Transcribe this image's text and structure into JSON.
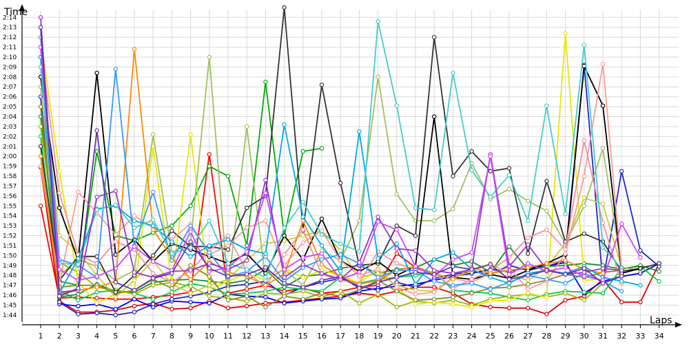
{
  "chart_data": {
    "type": "line",
    "ylabel": "Time",
    "xlabel": "Laps",
    "ylim": [
      "1:43.3",
      "2:15.2"
    ],
    "y_ticks": [
      "1:44",
      "1:45",
      "1:46",
      "1:47",
      "1:48",
      "1:49",
      "1:50",
      "1:51",
      "1:52",
      "1:53",
      "1:54",
      "1:55",
      "1:56",
      "1:57",
      "1:58",
      "1:59",
      "2:00",
      "2:01",
      "2:02",
      "2:03",
      "2:04",
      "2:05",
      "2:06",
      "2:07",
      "2:08",
      "2:09",
      "2:10",
      "2:11",
      "2:12",
      "2:13",
      "2:14"
    ],
    "x": [
      1,
      2,
      3,
      4,
      5,
      6,
      7,
      8,
      9,
      10,
      11,
      12,
      13,
      14,
      15,
      16,
      17,
      18,
      19,
      20,
      21,
      22,
      23,
      24,
      25,
      26,
      27,
      28,
      29,
      30,
      31,
      32,
      33,
      34
    ],
    "x_ticks": [
      "1",
      "2",
      "3",
      "4",
      "5",
      "6",
      "7",
      "8",
      "9",
      "10",
      "11",
      "12",
      "13",
      "14",
      "15",
      "16",
      "17",
      "18",
      "19",
      "20",
      "21",
      "22",
      "23",
      "24",
      "25",
      "26",
      "27",
      "28",
      "29",
      "30",
      "31",
      "32",
      "33",
      "34"
    ],
    "grid": true,
    "series": [
      {
        "color": "#ff0000",
        "values": [
          "1:55",
          "1:45.7",
          "1:45.8",
          "1:45.7",
          "1:45.6",
          "1:45.6",
          "1:45.8",
          "1:46",
          "1:46.3",
          "2:00.2",
          "1:46.2",
          "1:46.6",
          "1:47",
          "1:46.4",
          "1:46.7",
          "1:46.2",
          "1:46.4",
          "1:46.8",
          "1:47",
          "1:50.2",
          "1:48.8",
          "1:48",
          null,
          null,
          null,
          null,
          null,
          null,
          null,
          null,
          null,
          null,
          null,
          null
        ]
      },
      {
        "color": "#dd0000",
        "values": [
          "1:58.9",
          "1:45.4",
          "1:44.3",
          "1:44.3",
          "1:44.5",
          "1:44.9",
          "1:45.2",
          "1:44.6",
          "1:44.7",
          "1:45.4",
          "1:44.7",
          "1:44.9",
          "1:45.2",
          "1:45.3",
          "1:45.5",
          "1:45.7",
          "1:45.9",
          "1:46.2",
          "1:46",
          "1:46.4",
          "1:46.8",
          "1:46.8",
          "1:46.2",
          "1:45.1",
          "1:44.8",
          "1:44.7",
          "1:44.7",
          "1:44.1",
          "1:45.5",
          "1:45.9",
          "1:47.6",
          "1:45.3",
          "1:45.3",
          "1:49.2"
        ]
      },
      {
        "color": "#0000ee",
        "values": [
          "2:10",
          "1:45.1",
          "1:44.9",
          "1:45.1",
          "1:44.6",
          "1:45.6",
          "1:44.8",
          "1:45.4",
          "1:45.3",
          "1:45.2",
          "1:46.1",
          "1:45.9",
          "1:45.8",
          "1:45.2",
          "1:45.4",
          "1:45.6",
          "1:45.7",
          "1:46.4",
          "1:46.7",
          "1:46.9",
          "1:47.1",
          "1:47.5",
          "1:47.9",
          "1:48.2",
          "1:48.6",
          "1:48.4",
          "1:48.8",
          "1:48.9",
          "1:49.3",
          "1:46.2",
          "1:47.4",
          "1:47.9",
          "1:48.2",
          "1:49.2"
        ]
      },
      {
        "color": "#2222cc",
        "values": [
          "2:06",
          "1:45.3",
          "1:44.1",
          "1:44.2",
          "1:44.0",
          "1:44.3",
          "1:45.1",
          "1:45.6",
          "1:45.9",
          "1:46.3",
          "1:46.9",
          "1:47.1",
          "1:47.4",
          "1:46.0",
          "1:46.8",
          "1:47.3",
          "1:47.7",
          "1:46.9",
          "1:46.5",
          "1:47.3",
          "1:46.8",
          "1:47.7",
          "1:48.1",
          "1:48.4",
          "1:48.1",
          "1:49.0",
          "1:48.5",
          "1:48.9",
          "1:49.5",
          "2:09.2",
          "1:47.3",
          "1:58.5",
          "1:50.5",
          "1:48.9"
        ]
      },
      {
        "color": "#00aa00",
        "values": [
          "2:04",
          "1:47.4",
          "1:47",
          "2:00.5",
          "1:52",
          "1:51.5",
          "1:52.3",
          "1:53",
          "1:55",
          "1:59",
          "1:58",
          "1:51",
          "2:07.5",
          "1:52",
          "2:00.5",
          "2:00.8",
          null,
          null,
          null,
          null,
          null,
          null,
          null,
          null,
          null,
          null,
          null,
          null,
          null,
          null,
          null,
          null,
          null,
          null
        ]
      },
      {
        "color": "#00cc44",
        "values": [
          "2:02",
          "1:46.5",
          "1:45.5",
          "1:46.3",
          "1:46.5",
          "1:46.2",
          "1:45.6",
          "1:46.3",
          "1:47.2",
          "1:46.8",
          "1:46.1",
          "1:46.2",
          "1:46.4",
          "1:46.8",
          "1:46.6",
          "1:46.4",
          "1:47.8",
          "1:47.2",
          "1:47.6",
          "1:47.8",
          "1:48.0",
          "1:48.4",
          "1:46.5",
          "1:46.3",
          "1:46.2",
          "1:45.8",
          "1:45.5",
          "1:46.1",
          "1:46.4",
          "1:46.3",
          "1:46.2",
          "1:48.7",
          "1:48.9",
          "1:47.4"
        ]
      },
      {
        "color": "#228822",
        "values": [
          "2:13",
          "1:45.8",
          "1:46.1",
          "1:47.1",
          "1:46.4",
          "1:46.3",
          "1:47.3",
          "1:47.5",
          "1:47.6",
          "1:47.4",
          "1:47.2",
          "1:47.5",
          "1:48.6",
          "1:46.8",
          "1:47.9",
          "1:48.1",
          "1:48.7",
          "1:49.0",
          "1:48.2",
          "1:48.6",
          "1:48.8",
          "1:49.6",
          "1:49.0",
          "1:49.4",
          "1:48.3",
          "1:50.9",
          "1:48.6",
          "1:48.9",
          "1:49.0",
          "1:49.2",
          "1:49.0",
          "1:48.6",
          "1:49.0",
          "1:48.4"
        ]
      },
      {
        "color": "#9ab800",
        "values": [
          "2:03",
          "1:49.3",
          "1:48.3",
          "1:46.8",
          "1:46.5",
          "1:46.1",
          "1:47",
          "1:47.3",
          "1:46.9",
          "1:45.9",
          "1:45.7",
          "1:45.4",
          "1:46.2",
          "1:46.1",
          "1:46.4",
          "1:45.8",
          "1:46.4",
          "1:45.2",
          "1:46.1",
          "1:44.8",
          "1:45.4",
          "1:45.2",
          "1:45.5",
          "1:45.0",
          "1:45.6",
          "1:45.9",
          "1:46.1",
          "1:45.8",
          "1:46.2",
          "1:45.5",
          "1:47.2",
          null,
          null,
          null
        ]
      },
      {
        "color": "#e8e800",
        "values": [
          "2:12",
          "1:58.5",
          "1:47.3",
          "1:45.2",
          "1:46.1",
          "1:46.5",
          "2:01",
          "1:47.2",
          "2:02.2",
          "1:46.6",
          "1:47.4",
          "1:48.2",
          "1:47.5",
          "1:48.7",
          "1:47.8",
          "1:48.5",
          "1:48.0",
          "1:47.2",
          "1:48.7",
          "1:46.8",
          "1:45.1",
          "1:45.3",
          "1:45.1",
          "1:44.8",
          "1:45.4",
          "1:45.5",
          "1:46.2",
          "1:45.8",
          "2:12.4",
          "1:47.5",
          "1:47.6",
          null,
          null,
          null
        ]
      },
      {
        "color": "#cccc33",
        "values": [
          "2:09",
          "1:52",
          "1:50.4",
          "1:48",
          "1:45.8",
          "1:47.5",
          "1:49.5",
          "1:47.1",
          "1:46.2",
          "1:47",
          "1:47.6",
          "1:49.5",
          "1:51.2",
          "1:51.5",
          "1:52",
          "1:52.5",
          "1:50.5",
          "1:47.8",
          "1:48.2",
          "1:47",
          "1:46.5",
          "1:46.4",
          "1:47.8",
          "1:48.4",
          "1:49.2",
          "1:48.1",
          "1:47.5",
          "1:48.8",
          "1:51.2",
          "1:55.8",
          "1:55.2",
          "1:48.8",
          null,
          null
        ]
      },
      {
        "color": "#a0c060",
        "values": [
          "2:07",
          "1:48",
          "1:49.6",
          "1:48.9",
          "1:47.5",
          "1:48.5",
          "2:02.2",
          "1:50.3",
          "1:51.3",
          "2:10",
          "1:46.6",
          "2:03",
          "1:47.5",
          "1:48.6",
          "1:47.0",
          "1:50.5",
          "1:49.5",
          "1:53.5",
          "2:08",
          "1:56.2",
          "1:53.5",
          "1:53.5",
          "1:54.7",
          "1:59.3",
          "1:55.7",
          "1:56.7",
          "1:55.5",
          "1:54.5",
          "1:51.2",
          "1:55.0",
          "2:00.8",
          "1:48.8",
          "1:48.5",
          null
        ]
      },
      {
        "color": "#888822",
        "values": [
          "2:05",
          "1:46.8",
          "1:47",
          "1:47",
          "1:46.2",
          "1:46.5",
          "1:47.6",
          "1:46.7",
          "1:49",
          "1:47.9",
          "1:45.5",
          "1:45.9",
          "1:44.8",
          "1:45.9",
          "1:45.6",
          "1:46.2",
          "1:45.9",
          "1:46.5",
          "1:47.5",
          "1:46.4",
          "1:45.5",
          "1:45.6",
          "1:45.8",
          "1:46.2",
          "1:46.7",
          "1:46.8",
          "1:47.1",
          "1:47.5",
          "1:48.1",
          "1:47.8",
          "1:48.3",
          "1:48.5",
          null,
          null
        ]
      },
      {
        "color": "#333333",
        "values": [
          "2:01",
          "1:47.5",
          "1:49.9",
          "1:49.9",
          "1:46.3",
          "1:48",
          "1:50",
          "1:52.5",
          "1:50.9",
          "1:50.9",
          "1:50.6",
          "1:54.8",
          "1:56",
          "2:15",
          "1:52.5",
          "2:07.2",
          "1:57.3",
          "1:49",
          "1:49.2",
          "1:53",
          "1:52",
          "2:12",
          "1:58",
          "2:00.5",
          "1:58.5",
          "1:58.8",
          "1:50.2",
          "1:57.5",
          "1:51.4",
          "1:52.2",
          "1:51.4",
          "1:48.4",
          "1:48.7",
          "1:49.2"
        ]
      },
      {
        "color": "#000000",
        "values": [
          "2:08",
          "1:54.8",
          "1:49.5",
          "2:08.4",
          "1:50.1",
          "1:51.6",
          "1:49.4",
          "1:51.2",
          "1:50.6",
          "1:49.9",
          "1:49.2",
          "1:50.2",
          "1:48.2",
          "1:52.0",
          "1:49.6",
          "1:53.7",
          "1:49.5",
          "1:48.4",
          "1:49.4",
          "1:48.0",
          "1:48.9",
          "2:04",
          "1:47.8",
          "1:47.6",
          "1:48.1",
          "1:47.7",
          "1:48.5",
          "1:49.2",
          "1:50.1",
          "2:09.1",
          "2:05.1",
          "1:48.2",
          "1:48.7",
          null
        ]
      },
      {
        "color": "#ff9999",
        "values": [
          "1:59",
          "1:47.2",
          "1:56.4",
          "1:54.3",
          "1:52.1",
          "1:54.0",
          "1:52.8",
          "1:51.6",
          "1:53.2",
          "1:50.1",
          "1:51.0",
          "1:52.8",
          "1:53.5",
          "1:49.0",
          "1:51.3",
          "1:52.5",
          "1:49.5",
          "1:48.0",
          "1:48.6",
          "1:46.8",
          "1:46.1",
          "1:46.3",
          "1:47.7",
          "1:47.3",
          "1:48.2",
          "1:48.8",
          "1:46.6",
          "1:47.4",
          "1:50.2",
          "1:58.0",
          "2:09.3",
          "1:48.5",
          null,
          null
        ]
      },
      {
        "color": "#f090a0",
        "values": [
          "2:11",
          "1:56.3",
          "1:50.1",
          "1:49.2",
          "1:51.4",
          "1:50.6",
          "1:48.2",
          "1:47.3",
          "1:48.5",
          "1:50.5",
          "1:52.0",
          "1:48.4",
          "1:46.8",
          "1:50.1",
          "1:52.6",
          "1:48.1",
          "1:47.5",
          "1:47.2",
          "1:50.4",
          "1:49.2",
          "1:48.6",
          "1:48.3",
          "1:46.7",
          "1:47.6",
          "1:48.5",
          "1:49.8",
          "1:51.8",
          "1:52.6",
          "1:50.6",
          "2:01.6",
          "1:53.3",
          "1:47.2",
          null,
          null
        ]
      },
      {
        "color": "#ff8800",
        "values": [
          "2:00",
          "1:46.1",
          "1:46.5",
          "1:46.8",
          "1:47.4",
          "2:10.8",
          "1:52.6",
          "1:49.8",
          "1:47.6",
          "1:49.4",
          "1:48.3",
          "1:47.9",
          "1:47.0",
          "1:48.1",
          "1:53.5",
          "1:49.1",
          "1:47.8",
          "1:47.1",
          "1:47.5",
          "1:48.5",
          "1:48.9",
          "1:48.2",
          "1:47.6",
          "1:48.8",
          "1:48.2",
          "1:48.5",
          "1:48.8",
          "1:49.2",
          "1:49.5",
          "1:48.6",
          "1:48.2",
          null,
          null,
          null
        ]
      },
      {
        "color": "#3399ff",
        "values": [
          "2:12",
          "1:49.6",
          "1:49.0",
          "1:47.8",
          "2:08.8",
          "1:51.0",
          "1:56.4",
          "1:49.5",
          "1:53.0",
          "1:50.3",
          "1:47.8",
          "1:48.4",
          "1:49.9",
          "1:47.4",
          "1:48.8",
          "1:49.6",
          "1:50.1",
          "1:49.2",
          "1:47.8",
          "1:48.5",
          "1:48.5",
          "1:47.4",
          "1:47.0",
          "1:47.2",
          "1:46.6",
          "1:47.3",
          "1:48.0",
          "1:47.6",
          "1:47.2",
          "1:48.2",
          "1:47.4",
          "1:46.4",
          null,
          null
        ]
      },
      {
        "color": "#00aadd",
        "values": [
          "2:10",
          "1:46.2",
          "1:49.7",
          "1:54.7",
          "1:55.0",
          "1:53.5",
          "1:53.0",
          "1:51.4",
          "1:49.9",
          "1:51.0",
          "1:51.6",
          "1:50.6",
          "1:50.2",
          "2:03.2",
          "1:53.9",
          "1:51.0",
          "1:48.4",
          "2:02.5",
          "1:49.7",
          "1:51.2",
          "1:47.1",
          "1:49.6",
          "1:50.3",
          "1:48.6",
          "1:47.8",
          "1:47.2",
          "1:48.2",
          "1:48.5",
          "1:48.2",
          "1:48.9",
          "1:47.8",
          "1:47.4",
          "1:47.0",
          null
        ]
      },
      {
        "color": "#44cccc",
        "values": [
          "2:09",
          "1:49.2",
          "1:49.1",
          "1:54.6",
          "1:55.1",
          "1:52.8",
          "1:53.6",
          "1:50.2",
          "1:50.8",
          "1:53.5",
          "1:49.2",
          "1:48.6",
          "1:47.8",
          "1:52.8",
          "1:55.4",
          "1:52.1",
          "1:51.2",
          "1:50.4",
          "2:13.6",
          "2:05.1",
          "1:54.8",
          "1:54.6",
          "2:08.4",
          "1:58.6",
          "1:55.9",
          "1:58.1",
          "1:53.5",
          "2:05.1",
          "1:54.2",
          "2:11.2",
          "1:50.8",
          "1:48.7",
          null,
          null
        ]
      },
      {
        "color": "#9933cc",
        "values": [
          "2:14",
          "1:46.3",
          "1:46.5",
          "1:55.9",
          "1:56.5",
          "1:48.3",
          "1:47.8",
          "1:48.4",
          "1:48.5",
          "1:49.2",
          "1:48.6",
          "1:49.5",
          "1:57.6",
          "1:47.8",
          "1:49.1",
          "1:48.2",
          "1:47.6",
          "1:49.3",
          "1:53.9",
          "1:50.7",
          "1:50.5",
          "1:48.5",
          "1:48.2",
          "1:48.6",
          "2:00.2",
          "1:48.9",
          "1:51.1",
          "1:48.6",
          "1:48.1",
          "1:48.3",
          "1:48.7",
          "1:48.5",
          null,
          null
        ]
      },
      {
        "color": "#cc44ff",
        "values": [
          "2:11",
          "1:48.6",
          "1:47.5",
          "1:47.9",
          "1:48.7",
          "1:50.9",
          "1:49.4",
          "1:48.5",
          "1:52.4",
          "1:48.4",
          "1:48.8",
          "1:50.4",
          "1:56.3",
          "1:48.6",
          "1:49.8",
          "1:50.2",
          "1:47.6",
          "1:48.3",
          "1:53.4",
          "1:52.6",
          "1:48.9",
          "1:47.9",
          "1:49.6",
          "1:50.3",
          "2:00.0",
          "1:48.1",
          "1:49.2",
          "1:48.4",
          "1:48.8",
          "1:47.9",
          "1:47.5",
          "1:53.2",
          "1:49.8",
          null
        ]
      },
      {
        "color": "#6633aa",
        "values": [
          "2:13",
          "1:45.9",
          "1:46.7",
          "2:02.6",
          "1:47.3",
          "1:46.5",
          "1:47.7",
          "1:48.2",
          "1:51.4",
          "1:48.7",
          "1:47.9",
          "1:48.1",
          "1:48.8",
          "1:47.2",
          "1:46.8",
          "1:47.5",
          "1:47.9",
          "1:46.7",
          "1:47.3",
          "1:47.8",
          "1:48.3",
          "1:48.1",
          "1:48.9",
          "1:48.6",
          "1:49.1",
          "1:47.6",
          "1:48.0",
          "1:48.5",
          "1:48.1",
          "1:48.7",
          "1:47.2",
          "1:47.9",
          null,
          null
        ]
      }
    ]
  }
}
